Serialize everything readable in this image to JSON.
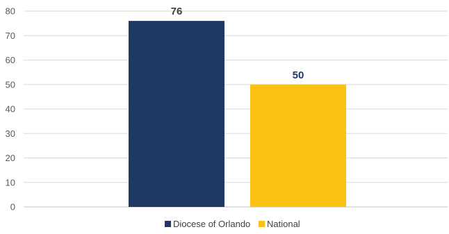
{
  "chart_data": {
    "type": "bar",
    "categories": [
      ""
    ],
    "series": [
      {
        "name": "Diocese of Orlando",
        "values": [
          76
        ],
        "color": "#1f3864"
      },
      {
        "name": "National",
        "values": [
          50
        ],
        "color": "#fac213"
      }
    ],
    "data_labels": [
      "76",
      "50"
    ],
    "data_label_colors": [
      "#404040",
      "#1f3864"
    ],
    "ylim": [
      0,
      80
    ],
    "y_ticks": [
      "0",
      "10",
      "20",
      "30",
      "40",
      "50",
      "60",
      "70",
      "80"
    ],
    "grid": true,
    "legend_position": "bottom"
  }
}
